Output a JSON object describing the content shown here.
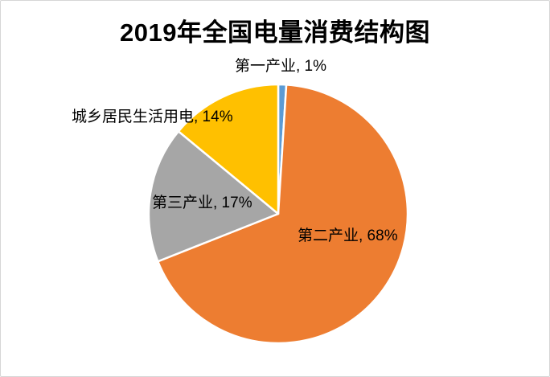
{
  "page": {
    "background_color": "#ffffff",
    "frame_border_color": "#d6d6d6"
  },
  "chart_data": {
    "type": "pie",
    "title": "2019年全国电量消费结构图",
    "legend": "none",
    "direction": "clockwise",
    "start_angle_deg": 0,
    "data_labels": "category name + percent",
    "slice_separator_color": "#ffffff",
    "slices": [
      {
        "name": "第一产业",
        "value": 1,
        "percent_label": "1%",
        "label": "第一产业, 1%",
        "color": "#5B9BD5"
      },
      {
        "name": "第二产业",
        "value": 68,
        "percent_label": "68%",
        "label": "第二产业, 68%",
        "color": "#ED7D31"
      },
      {
        "name": "第三产业",
        "value": 17,
        "percent_label": "17%",
        "label": "第三产业, 17%",
        "color": "#A6A6A6"
      },
      {
        "name": "城乡居民生活用电",
        "value": 14,
        "percent_label": "14%",
        "label": "城乡居民生活用电, 14%",
        "color": "#FFC000"
      }
    ]
  }
}
